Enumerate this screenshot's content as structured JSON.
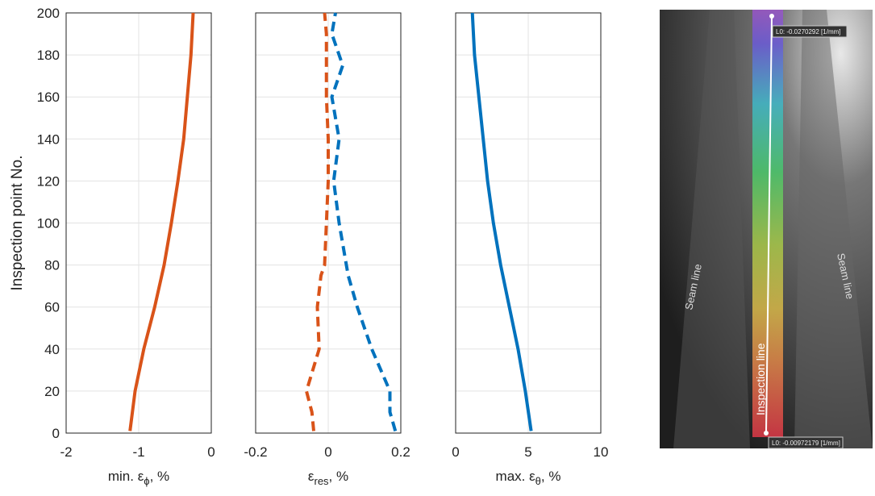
{
  "chart_data": [
    {
      "type": "line",
      "ylabel": "Inspection point No.",
      "y": [
        1,
        20,
        40,
        60,
        80,
        100,
        120,
        140,
        160,
        180,
        200
      ],
      "series": [
        {
          "color": "#d95319",
          "linestyle": "solid",
          "values": [
            -1.12,
            -1.05,
            -0.93,
            -0.78,
            -0.65,
            -0.55,
            -0.46,
            -0.38,
            -0.33,
            -0.28,
            -0.25
          ]
        }
      ],
      "xlim": [
        -2,
        0
      ],
      "xticks": [
        -2,
        -1,
        0
      ],
      "ylim": [
        0,
        200
      ],
      "yticks": [
        0,
        20,
        40,
        60,
        80,
        100,
        120,
        140,
        160,
        180,
        200
      ],
      "ytick_labels": true,
      "grid": true,
      "xlabel": {
        "text": "min. ε",
        "sub": "ϕ",
        "suffix": ", %"
      }
    },
    {
      "type": "line",
      "y": [
        1,
        10,
        20,
        40,
        60,
        75,
        80,
        100,
        120,
        140,
        160,
        175,
        190,
        200
      ],
      "series": [
        {
          "color": "#d95319",
          "linestyle": "dashed",
          "values": [
            -0.04,
            -0.045,
            -0.06,
            -0.025,
            -0.03,
            -0.02,
            -0.01,
            -0.005,
            0.0,
            0.0,
            -0.005,
            -0.005,
            -0.005,
            -0.01
          ]
        },
        {
          "color": "#0072bd",
          "linestyle": "dashed",
          "values": [
            0.185,
            0.17,
            0.17,
            0.12,
            0.08,
            0.055,
            0.05,
            0.03,
            0.015,
            0.03,
            0.01,
            0.04,
            0.01,
            0.02
          ]
        }
      ],
      "xlim": [
        -0.2,
        0.2
      ],
      "xticks": [
        -0.2,
        0,
        0.2
      ],
      "ylim": [
        0,
        200
      ],
      "yticks": [
        0,
        20,
        40,
        60,
        80,
        100,
        120,
        140,
        160,
        180,
        200
      ],
      "ytick_labels": false,
      "grid": true,
      "xlabel": {
        "text": "ε",
        "sub": "res",
        "suffix": ", %"
      }
    },
    {
      "type": "line",
      "y": [
        1,
        20,
        40,
        60,
        80,
        100,
        120,
        140,
        160,
        180,
        200
      ],
      "series": [
        {
          "color": "#0072bd",
          "linestyle": "solid",
          "values": [
            5.2,
            4.8,
            4.3,
            3.7,
            3.1,
            2.6,
            2.2,
            1.9,
            1.6,
            1.3,
            1.15
          ]
        }
      ],
      "xlim": [
        0,
        10
      ],
      "xticks": [
        0,
        5,
        10
      ],
      "ylim": [
        0,
        200
      ],
      "yticks": [
        0,
        20,
        40,
        60,
        80,
        100,
        120,
        140,
        160,
        180,
        200
      ],
      "ytick_labels": false,
      "grid": true,
      "xlabel": {
        "text": "max. ε",
        "sub": "θ",
        "suffix": ", %"
      }
    }
  ],
  "image": {
    "seam_left": "Seam line",
    "seam_right": "Seam line",
    "inspection": "Inspection line",
    "label_top": "L0: -0.0270292 [1/mm]",
    "label_bottom": "L0: -0.00972179 [1/mm]"
  }
}
